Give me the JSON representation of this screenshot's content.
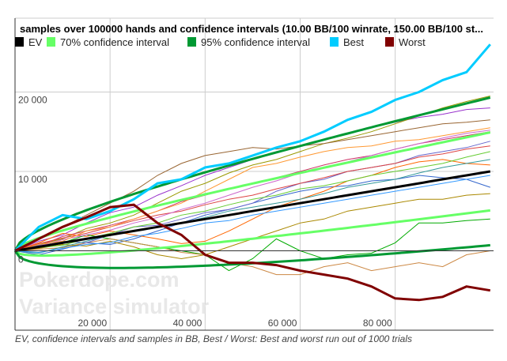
{
  "chart_data": {
    "type": "line",
    "title": "samples over 100000 hands and confidence intervals (10.00 BB/100 winrate, 150.00 BB/100 st...",
    "caption": "EV, confidence intervals and samples in BB, Best / Worst: Best and worst run out of 1000 trials",
    "watermark": [
      "Pokerdope.com",
      "Variance simulator"
    ],
    "xlim": [
      0,
      100700
    ],
    "ylim": [
      -10000,
      29300
    ],
    "x_ticks": [
      {
        "value": 20000,
        "label": "20 000"
      },
      {
        "value": 40000,
        "label": "40 000"
      },
      {
        "value": 60000,
        "label": "60 000"
      },
      {
        "value": 80000,
        "label": "80 000"
      }
    ],
    "y_ticks": [
      {
        "value": 0,
        "label": "0"
      },
      {
        "value": 10000,
        "label": "10 000"
      },
      {
        "value": 20000,
        "label": "20 000"
      }
    ],
    "grid": true,
    "legend_position": "top",
    "legend": [
      {
        "name": "EV",
        "color": "#000000"
      },
      {
        "name": "70% confidence interval",
        "color": "#66ff66"
      },
      {
        "name": "95% confidence interval",
        "color": "#009933"
      },
      {
        "name": "Best",
        "color": "#00ccff"
      },
      {
        "name": "Worst",
        "color": "#800000"
      }
    ],
    "ev": {
      "winrate_bb_per_100": 10,
      "stdev_bb_per_100": 150,
      "hands": 100000
    },
    "x": [
      0,
      5000,
      10000,
      15000,
      20000,
      25000,
      30000,
      35000,
      40000,
      45000,
      50000,
      55000,
      60000,
      65000,
      70000,
      75000,
      80000,
      85000,
      90000,
      95000,
      100000
    ],
    "best": [
      0,
      3000,
      4500,
      4000,
      5000,
      6500,
      8500,
      9000,
      10500,
      11000,
      12000,
      13000,
      13800,
      15000,
      16500,
      17500,
      19000,
      20000,
      21500,
      22500,
      26000
    ],
    "worst": [
      0,
      1500,
      3000,
      4200,
      5500,
      5800,
      3500,
      2000,
      -500,
      -1500,
      -1500,
      -1800,
      -2500,
      -3000,
      -3500,
      -4500,
      -6000,
      -6200,
      -5800,
      -4500,
      -5000
    ],
    "samples": [
      {
        "color": "#9933cc",
        "values": [
          0,
          1200,
          2000,
          3500,
          4800,
          5500,
          7000,
          8200,
          9500,
          10500,
          11500,
          12500,
          13200,
          14000,
          14800,
          15500,
          16200,
          16800,
          17200,
          17800,
          18000
        ]
      },
      {
        "color": "#999900",
        "values": [
          0,
          800,
          1500,
          2800,
          3500,
          4500,
          6000,
          7500,
          8500,
          9800,
          10800,
          11500,
          12500,
          13500,
          14200,
          15000,
          16000,
          17000,
          18000,
          18800,
          19500
        ]
      },
      {
        "color": "#cc3366",
        "values": [
          0,
          600,
          1800,
          2500,
          3200,
          4000,
          5000,
          6200,
          7000,
          7800,
          8500,
          9200,
          10000,
          10800,
          11500,
          12000,
          12800,
          13500,
          14000,
          14500,
          15000
        ]
      },
      {
        "color": "#3366cc",
        "values": [
          0,
          -500,
          200,
          1000,
          800,
          1500,
          2500,
          3500,
          4500,
          5200,
          6000,
          6800,
          7500,
          8000,
          8200,
          8800,
          9000,
          9500,
          9200,
          9000,
          8000
        ]
      },
      {
        "color": "#ff6600",
        "values": [
          0,
          1000,
          2200,
          1800,
          2500,
          2000,
          1500,
          900,
          1200,
          2500,
          4000,
          5500,
          6500,
          7500,
          8800,
          9500,
          10500,
          11200,
          11500,
          11000,
          10800
        ]
      },
      {
        "color": "#00aa00",
        "values": [
          0,
          500,
          1000,
          2000,
          1500,
          1000,
          500,
          0,
          -500,
          -2500,
          -1000,
          1500,
          0,
          -1000,
          -500,
          -300,
          1000,
          3500,
          3500,
          3800,
          4000
        ]
      },
      {
        "color": "#cc8844",
        "values": [
          0,
          200,
          400,
          1000,
          1500,
          1000,
          500,
          -200,
          -500,
          -1500,
          -2000,
          -3000,
          -3000,
          -2000,
          -1500,
          -2500,
          -2000,
          -1500,
          -2000,
          -500,
          0
        ]
      },
      {
        "color": "#aa8800",
        "values": [
          0,
          300,
          800,
          600,
          1200,
          500,
          -500,
          -1000,
          -500,
          500,
          1500,
          2500,
          3500,
          4000,
          5000,
          5500,
          6000,
          6500,
          6500,
          7000,
          7200
        ]
      },
      {
        "color": "#996633",
        "values": [
          0,
          1500,
          3000,
          4500,
          6000,
          7500,
          9500,
          11000,
          12000,
          12500,
          13000,
          12800,
          13200,
          13500,
          14000,
          14500,
          15000,
          15500,
          16000,
          16200,
          16500
        ]
      },
      {
        "color": "#6666cc",
        "values": [
          0,
          700,
          1200,
          1000,
          2000,
          3000,
          3200,
          4000,
          4800,
          5200,
          6000,
          7500,
          8500,
          9000,
          10000,
          10500,
          11000,
          12000,
          12500,
          13000,
          13800
        ]
      },
      {
        "color": "#339999",
        "values": [
          0,
          -300,
          500,
          1200,
          2000,
          2500,
          3000,
          3500,
          4200,
          5000,
          5500,
          6000,
          6500,
          7200,
          8000,
          8500,
          9000,
          9800,
          10500,
          11000,
          11500
        ]
      },
      {
        "color": "#dd4444",
        "values": [
          0,
          900,
          1600,
          2200,
          3000,
          3800,
          4500,
          5000,
          5800,
          6500,
          7000,
          7800,
          8500,
          9200,
          10000,
          10500,
          11000,
          11800,
          12200,
          12800,
          13200
        ]
      },
      {
        "color": "#66cc33",
        "values": [
          0,
          400,
          700,
          1500,
          2200,
          3000,
          3500,
          4500,
          5000,
          5800,
          6500,
          7000,
          7800,
          8200,
          8800,
          9500,
          10000,
          10500,
          11000,
          11800,
          12500
        ]
      },
      {
        "color": "#cc66cc",
        "values": [
          0,
          600,
          1400,
          2000,
          2600,
          3500,
          4200,
          5200,
          6000,
          7000,
          8000,
          8800,
          9800,
          10500,
          11200,
          12000,
          12800,
          13500,
          14200,
          14800,
          15200
        ]
      },
      {
        "color": "#3399ff",
        "values": [
          0,
          -200,
          300,
          800,
          1000,
          1800,
          2200,
          2800,
          3500,
          3800,
          4500,
          5000,
          5500,
          6000,
          6500,
          7000,
          7500,
          8000,
          8500,
          9000,
          9500
        ]
      },
      {
        "color": "#ff9933",
        "values": [
          0,
          800,
          1200,
          2500,
          3000,
          4000,
          5000,
          6000,
          7500,
          9000,
          10500,
          11000,
          11800,
          12500,
          13000,
          13200,
          13800,
          14000,
          14500,
          15000,
          15500
        ]
      }
    ]
  }
}
